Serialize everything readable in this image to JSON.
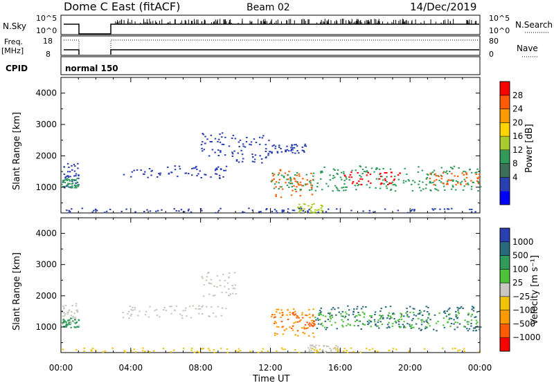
{
  "header": {
    "station": "Dome C East (fitACF)",
    "beam": "Beam 02",
    "date": "14/Dec/2019"
  },
  "summary_panels": {
    "nsky_label": "N.Sky",
    "nsky_ticks": [
      "10^5",
      "10^0"
    ],
    "nsearch_label": "N.Search",
    "nsearch_ticks": [
      "10^5",
      "10^0"
    ],
    "freq_label": "Freq.",
    "freq_unit": "[MHz]",
    "freq_ticks": [
      "18",
      "8"
    ],
    "nave_label": "Nave",
    "nave_ticks": [
      "80",
      "0"
    ],
    "cpid_label": "CPID",
    "cpid_value": "normal 150"
  },
  "chart_data": [
    {
      "type": "heatmap",
      "name": "power",
      "ylabel": "Slant Range [km]",
      "yticks": [
        "4000",
        "3000",
        "2000",
        "1000"
      ],
      "ylim": [
        180,
        4500
      ],
      "xlim_hours": [
        0,
        24
      ],
      "colorbar_title": "Power [dB]",
      "colorbar_ticks": [
        "28",
        "24",
        "20",
        "16",
        "12",
        "8",
        "4"
      ],
      "colorbar_colors": [
        "#0000ff",
        "#2a3fb0",
        "#3e6f5a",
        "#2f9a5a",
        "#a8cc2c",
        "#ffd400",
        "#ff9b00",
        "#ff5a00",
        "#ff0000"
      ],
      "scatter_blobs": [
        {
          "t": [
            0.0,
            1.0
          ],
          "r": [
            1000,
            1800
          ],
          "color": "#2a3fb0"
        },
        {
          "t": [
            0.0,
            1.0
          ],
          "r": [
            1000,
            1300
          ],
          "color": "#2f9a5a"
        },
        {
          "t": [
            3.5,
            9.5
          ],
          "r": [
            1300,
            1700
          ],
          "color": "#2a3fb0"
        },
        {
          "t": [
            8.0,
            10.0
          ],
          "r": [
            2000,
            2800
          ],
          "color": "#2a3fb0"
        },
        {
          "t": [
            10.0,
            12.0
          ],
          "r": [
            1800,
            2700
          ],
          "color": "#2a3fb0"
        },
        {
          "t": [
            12.0,
            14.0
          ],
          "r": [
            2100,
            2400
          ],
          "color": "#2a3fb0"
        },
        {
          "t": [
            12.0,
            14.5
          ],
          "r": [
            700,
            1600
          ],
          "color": "#ff5a00"
        },
        {
          "t": [
            12.0,
            14.5
          ],
          "r": [
            900,
            1500
          ],
          "color": "#2f9a5a"
        },
        {
          "t": [
            13.5,
            15.0
          ],
          "r": [
            200,
            500
          ],
          "color": "#a8cc2c"
        },
        {
          "t": [
            14.5,
            24.0
          ],
          "r": [
            900,
            1700
          ],
          "color": "#2f9a5a"
        },
        {
          "t": [
            16.0,
            19.5
          ],
          "r": [
            1100,
            1500
          ],
          "color": "#ff0000"
        },
        {
          "t": [
            21.0,
            24.0
          ],
          "r": [
            1100,
            1500
          ],
          "color": "#ff5a00"
        },
        {
          "t": [
            0.0,
            24.0
          ],
          "r": [
            200,
            350
          ],
          "color": "#2a3fb0"
        }
      ]
    },
    {
      "type": "heatmap",
      "name": "velocity",
      "ylabel": "Slant Range [km]",
      "yticks": [
        "4000",
        "3000",
        "2000",
        "1000"
      ],
      "ylim": [
        180,
        4500
      ],
      "xlabel": "Time UT",
      "xticks": [
        "00:00",
        "04:00",
        "08:00",
        "12:00",
        "16:00",
        "20:00",
        "00:00"
      ],
      "colorbar_title": "Velocity [m s⁻¹]",
      "colorbar_ticks": [
        "1000",
        "500",
        "100",
        "25",
        "−25",
        "−100",
        "−500",
        "−1000"
      ],
      "colorbar_colors": [
        "#ff0000",
        "#ff5a00",
        "#ff9b00",
        "#f2c20b",
        "#c8c8c0",
        "#4fc23a",
        "#2f9a5a",
        "#2a6a7a",
        "#2a3fb0"
      ],
      "scatter_blobs": [
        {
          "t": [
            0.0,
            1.0
          ],
          "r": [
            1000,
            1800
          ],
          "color": "#c8c8c0"
        },
        {
          "t": [
            0.0,
            1.0
          ],
          "r": [
            1000,
            1300
          ],
          "color": "#2f9a5a"
        },
        {
          "t": [
            3.5,
            9.5
          ],
          "r": [
            1300,
            1700
          ],
          "color": "#c8c8c0"
        },
        {
          "t": [
            8.0,
            10.0
          ],
          "r": [
            2000,
            2800
          ],
          "color": "#c8c8c0"
        },
        {
          "t": [
            12.0,
            14.5
          ],
          "r": [
            700,
            1600
          ],
          "color": "#ff9b00"
        },
        {
          "t": [
            12.0,
            14.5
          ],
          "r": [
            900,
            1500
          ],
          "color": "#ff5a00"
        },
        {
          "t": [
            14.5,
            24.0
          ],
          "r": [
            900,
            1700
          ],
          "color": "#2a6a7a"
        },
        {
          "t": [
            14.5,
            24.0
          ],
          "r": [
            1000,
            1500
          ],
          "color": "#4fc23a"
        },
        {
          "t": [
            14.0,
            16.0
          ],
          "r": [
            200,
            450
          ],
          "color": "#c8c8c0"
        },
        {
          "t": [
            0.0,
            24.0
          ],
          "r": [
            200,
            350
          ],
          "color": "#f2c20b"
        }
      ]
    }
  ]
}
